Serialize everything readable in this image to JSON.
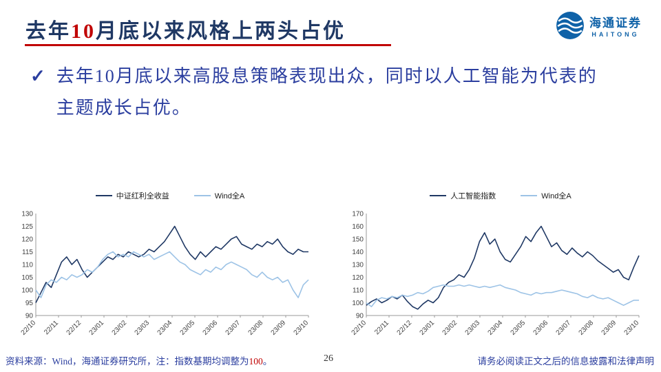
{
  "title": {
    "part1": "去年",
    "number": "10",
    "part2": "月底以来风格上两头占优"
  },
  "bullet": {
    "check": "✓",
    "line1": "去年10月底以来高股息策略表现出众，同时以人工智能为代表的",
    "line2": "主题成长占优。"
  },
  "logo": {
    "cn": "海通证券",
    "en": "HAITONG"
  },
  "footer": {
    "source_prefix": "资料来源：Wind，海通证券研究所，注：指数基期均调整为",
    "source_number": "100",
    "source_suffix": "。",
    "page": "26",
    "disclaimer": "请务必阅读正文之后的信息披露和法律声明"
  },
  "colors": {
    "navy": "#1f3864",
    "light_blue": "#9dc3e6",
    "red": "#c00000"
  },
  "chart_data": [
    {
      "type": "line",
      "title": "",
      "xlabel": "",
      "ylabel": "",
      "ylim": [
        90,
        130
      ],
      "yticks": [
        90,
        95,
        100,
        105,
        110,
        115,
        120,
        125,
        130
      ],
      "grid": false,
      "legend_position": "top",
      "x_labels": [
        "22/10",
        "22/11",
        "22/12",
        "23/01",
        "23/02",
        "23/03",
        "23/04",
        "23/05",
        "23/06",
        "23/07",
        "23/08",
        "23/09",
        "23/10"
      ],
      "series": [
        {
          "name": "中证红利全收益",
          "color": "#1f3864",
          "values": [
            95,
            99,
            103,
            101,
            106,
            111,
            113,
            110,
            112,
            108,
            105,
            107,
            109,
            111,
            113,
            112,
            114,
            113,
            115,
            114,
            113,
            114,
            116,
            115,
            117,
            119,
            122,
            125,
            121,
            117,
            114,
            112,
            115,
            113,
            115,
            117,
            116,
            118,
            120,
            121,
            118,
            117,
            116,
            118,
            117,
            119,
            118,
            120,
            117,
            115,
            114,
            116,
            115,
            115
          ]
        },
        {
          "name": "Wind全A",
          "color": "#9dc3e6",
          "values": [
            100,
            97,
            102,
            104,
            103,
            105,
            104,
            106,
            105,
            106,
            108,
            107,
            109,
            112,
            114,
            115,
            113,
            114,
            113,
            115,
            114,
            113,
            114,
            112,
            113,
            114,
            115,
            113,
            111,
            110,
            108,
            107,
            106,
            108,
            107,
            109,
            108,
            110,
            111,
            110,
            109,
            108,
            106,
            105,
            107,
            105,
            104,
            105,
            103,
            104,
            100,
            97,
            102,
            104
          ]
        }
      ]
    },
    {
      "type": "line",
      "title": "",
      "xlabel": "",
      "ylabel": "",
      "ylim": [
        90,
        170
      ],
      "yticks": [
        90,
        100,
        110,
        120,
        130,
        140,
        150,
        160,
        170
      ],
      "grid": false,
      "legend_position": "top",
      "x_labels": [
        "22/10",
        "22/11",
        "22/12",
        "23/01",
        "23/02",
        "23/03",
        "23/04",
        "23/05",
        "23/06",
        "23/07",
        "23/08",
        "23/09",
        "23/10"
      ],
      "series": [
        {
          "name": "人工智能指数",
          "color": "#1f3864",
          "values": [
            98,
            101,
            103,
            100,
            102,
            105,
            103,
            106,
            101,
            97,
            95,
            99,
            102,
            100,
            104,
            112,
            116,
            118,
            122,
            120,
            126,
            135,
            148,
            155,
            146,
            150,
            140,
            134,
            132,
            138,
            144,
            152,
            148,
            155,
            160,
            152,
            144,
            147,
            141,
            138,
            143,
            139,
            136,
            140,
            137,
            133,
            130,
            127,
            124,
            126,
            120,
            118,
            128,
            137
          ]
        },
        {
          "name": "Wind全A",
          "color": "#9dc3e6",
          "values": [
            100,
            97,
            102,
            104,
            103,
            105,
            104,
            106,
            105,
            106,
            108,
            107,
            109,
            112,
            113,
            114,
            113,
            113,
            114,
            113,
            114,
            113,
            112,
            113,
            112,
            113,
            114,
            112,
            111,
            110,
            108,
            107,
            106,
            108,
            107,
            108,
            108,
            109,
            110,
            109,
            108,
            107,
            105,
            104,
            106,
            104,
            103,
            104,
            102,
            100,
            98,
            100,
            102,
            102
          ]
        }
      ]
    }
  ]
}
